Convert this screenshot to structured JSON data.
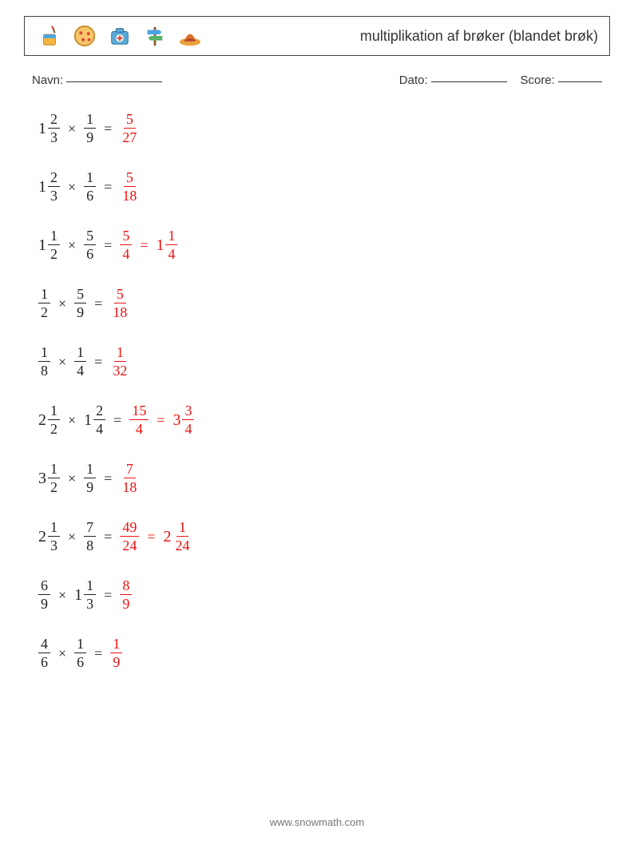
{
  "header": {
    "title": "multiplikation af brøker (blandet brøk)",
    "icons": [
      "bucket-icon",
      "pizza-icon",
      "firstaid-icon",
      "signpost-icon",
      "hat-icon"
    ]
  },
  "meta": {
    "name_label": "Navn:",
    "date_label": "Dato:",
    "score_label": "Score:"
  },
  "style": {
    "problem_color": "#222222",
    "answer_color": "#ee1111",
    "font_family": "Georgia, Times New Roman, serif",
    "font_size_pt": 15,
    "operator_symbol": "×",
    "equals_symbol": "="
  },
  "problems": [
    {
      "a": {
        "whole": 1,
        "num": 2,
        "den": 3
      },
      "b": {
        "num": 1,
        "den": 9
      },
      "answers": [
        {
          "num": 5,
          "den": 27
        }
      ]
    },
    {
      "a": {
        "whole": 1,
        "num": 2,
        "den": 3
      },
      "b": {
        "num": 1,
        "den": 6
      },
      "answers": [
        {
          "num": 5,
          "den": 18
        }
      ]
    },
    {
      "a": {
        "whole": 1,
        "num": 1,
        "den": 2
      },
      "b": {
        "num": 5,
        "den": 6
      },
      "answers": [
        {
          "num": 5,
          "den": 4
        },
        {
          "whole": 1,
          "num": 1,
          "den": 4
        }
      ]
    },
    {
      "a": {
        "num": 1,
        "den": 2
      },
      "b": {
        "num": 5,
        "den": 9
      },
      "answers": [
        {
          "num": 5,
          "den": 18
        }
      ]
    },
    {
      "a": {
        "num": 1,
        "den": 8
      },
      "b": {
        "num": 1,
        "den": 4
      },
      "answers": [
        {
          "num": 1,
          "den": 32
        }
      ]
    },
    {
      "a": {
        "whole": 2,
        "num": 1,
        "den": 2
      },
      "b": {
        "whole": 1,
        "num": 2,
        "den": 4
      },
      "answers": [
        {
          "num": 15,
          "den": 4
        },
        {
          "whole": 3,
          "num": 3,
          "den": 4
        }
      ]
    },
    {
      "a": {
        "whole": 3,
        "num": 1,
        "den": 2
      },
      "b": {
        "num": 1,
        "den": 9
      },
      "answers": [
        {
          "num": 7,
          "den": 18
        }
      ]
    },
    {
      "a": {
        "whole": 2,
        "num": 1,
        "den": 3
      },
      "b": {
        "num": 7,
        "den": 8
      },
      "answers": [
        {
          "num": 49,
          "den": 24
        },
        {
          "whole": 2,
          "num": 1,
          "den": 24
        }
      ]
    },
    {
      "a": {
        "num": 6,
        "den": 9
      },
      "b": {
        "whole": 1,
        "num": 1,
        "den": 3
      },
      "answers": [
        {
          "num": 8,
          "den": 9
        }
      ]
    },
    {
      "a": {
        "num": 4,
        "den": 6
      },
      "b": {
        "num": 1,
        "den": 6
      },
      "answers": [
        {
          "num": 1,
          "den": 9
        }
      ]
    }
  ],
  "footer": {
    "url": "www.snowmath.com"
  }
}
